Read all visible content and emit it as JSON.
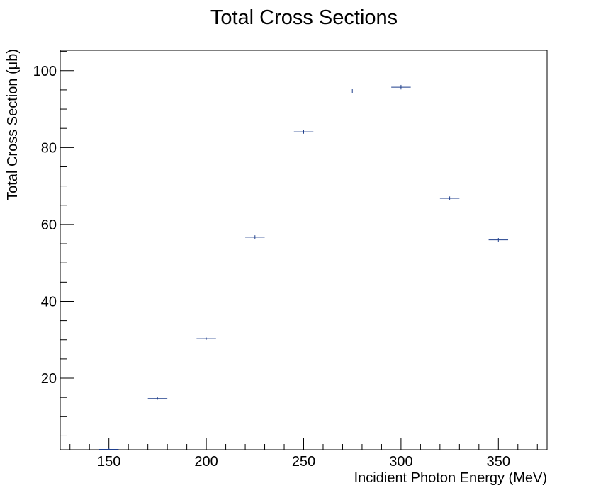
{
  "chart_data": {
    "type": "scatter",
    "title": "Total Cross Sections",
    "xlabel": "Incidient Photon Energy (MeV)",
    "ylabel": "Total Cross Section (μb)",
    "xlim": [
      125,
      375
    ],
    "ylim": [
      1.4,
      105.3
    ],
    "x_major_ticks": [
      150,
      200,
      250,
      300,
      350
    ],
    "x_tick_labels": [
      "150",
      "200",
      "250",
      "300",
      "350"
    ],
    "y_major_ticks": [
      20,
      40,
      60,
      80,
      100
    ],
    "y_tick_labels": [
      "20",
      "40",
      "60",
      "80",
      "100"
    ],
    "grid": false,
    "series": [
      {
        "x": [
          150,
          175,
          200,
          225,
          250,
          275,
          300,
          325,
          350
        ],
        "y": [
          1.5,
          14.7,
          30.3,
          56.7,
          84.1,
          94.7,
          95.7,
          66.8,
          56.0
        ],
        "x_err": [
          5,
          5,
          5,
          5,
          5,
          5,
          5,
          5,
          5
        ],
        "y_err": [
          0.1,
          0.1,
          0.1,
          0.3,
          0.3,
          0.4,
          0.4,
          0.3,
          0.3
        ],
        "color": "#1f3f8c"
      }
    ]
  }
}
